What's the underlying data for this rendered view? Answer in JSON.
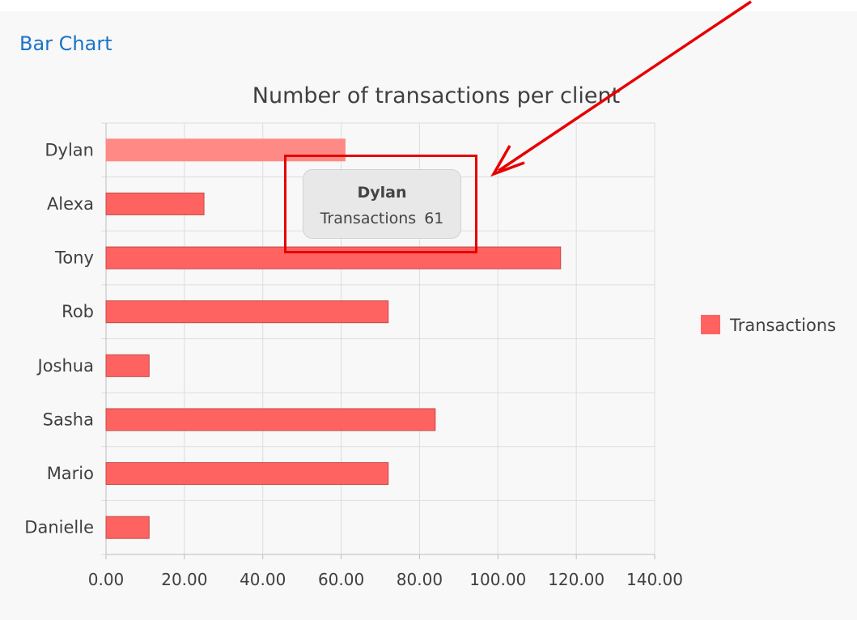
{
  "panel": {
    "title": "Bar Chart"
  },
  "tooltip": {
    "category": "Dylan",
    "series": "Transactions",
    "value": "61"
  },
  "colors": {
    "bar": "#ff6361",
    "bar_hover": "#ff8a85",
    "bar_stroke": "#c44a47",
    "annotation": "#e60000",
    "title_link": "#1a73c8"
  },
  "chart_data": {
    "type": "bar",
    "orientation": "horizontal",
    "title": "Number of transactions per client",
    "categories": [
      "Dylan",
      "Alexa",
      "Tony",
      "Rob",
      "Joshua",
      "Sasha",
      "Mario",
      "Danielle"
    ],
    "series": [
      {
        "name": "Transactions",
        "values": [
          61,
          25,
          116,
          72,
          11,
          84,
          72,
          11
        ]
      }
    ],
    "xlim": [
      0,
      140
    ],
    "x_ticks": [
      "0.00",
      "20.00",
      "40.00",
      "60.00",
      "80.00",
      "100.00",
      "120.00",
      "140.00"
    ],
    "grid": true,
    "legend": "right",
    "highlighted_category": "Dylan"
  }
}
